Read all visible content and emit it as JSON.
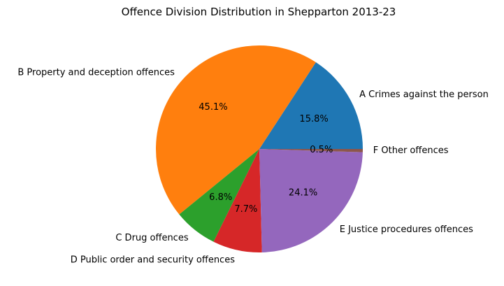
{
  "chart_data": {
    "type": "pie",
    "title": "Offence Division Distribution in Shepparton 2013-23",
    "labels": [
      "A Crimes against the person",
      "B Property and deception offences",
      "C Drug offences",
      "D Public order and security offences",
      "E Justice procedures offences",
      "F Other offences"
    ],
    "values": [
      15.8,
      45.1,
      6.8,
      7.7,
      24.1,
      0.5
    ],
    "value_labels": [
      "15.8%",
      "45.1%",
      "6.8%",
      "7.7%",
      "24.1%",
      "0.5%"
    ],
    "colors": [
      "#1f77b4",
      "#ff7f0e",
      "#2ca02c",
      "#d62728",
      "#9467bd",
      "#8c564b"
    ],
    "start_angle_deg": 0,
    "direction": "counterclockwise",
    "legend": "none"
  }
}
